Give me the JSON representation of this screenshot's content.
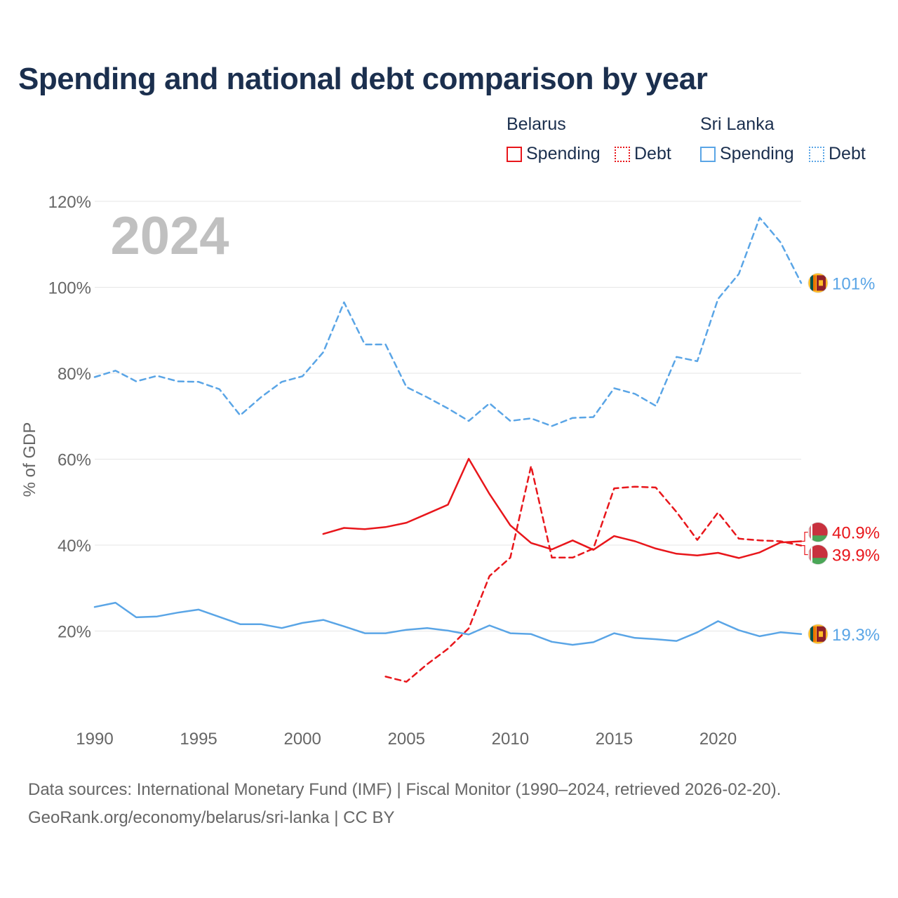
{
  "title": "Spending and national debt comparison by year",
  "legend": {
    "groups": [
      "Belarus",
      "Sri Lanka"
    ],
    "items": [
      "Spending",
      "Debt",
      "Spending",
      "Debt"
    ]
  },
  "year_label": "2024",
  "source": {
    "line1": "Data sources: International Monetary Fund (IMF) | Fiscal Monitor (1990–2024, retrieved 2026-02-20).",
    "line2": "GeoRank.org/economy/belarus/sri-lanka | CC BY"
  },
  "colors": {
    "belarus": "#e8161b",
    "sri_lanka": "#5aa5e6",
    "grid": "#e6e6e6",
    "axis_text": "#666666",
    "watermark": "#c0c0c0"
  },
  "chart_data": {
    "type": "line",
    "title": "Spending and national debt comparison by year",
    "xlabel": "",
    "ylabel": "% of GDP",
    "xlim": [
      1990,
      2024
    ],
    "ylim": [
      0,
      120
    ],
    "x_ticks": [
      1990,
      1995,
      2000,
      2005,
      2010,
      2015,
      2020
    ],
    "x_tick_labels": [
      "1990",
      "1995",
      "2000",
      "2005",
      "2010",
      "2015",
      "2020"
    ],
    "y_ticks": [
      20,
      40,
      60,
      80,
      100,
      120
    ],
    "y_tick_labels": [
      "20%",
      "40%",
      "60%",
      "80%",
      "100%",
      "120%"
    ],
    "grid": true,
    "series": [
      {
        "name": "Belarus Spending",
        "country": "Belarus",
        "metric": "Spending",
        "style": "solid",
        "color": "#e8161b",
        "x": [
          2001,
          2002,
          2003,
          2004,
          2005,
          2006,
          2007,
          2008,
          2009,
          2010,
          2011,
          2012,
          2013,
          2014,
          2015,
          2016,
          2017,
          2018,
          2019,
          2020,
          2021,
          2022,
          2023,
          2024
        ],
        "values": [
          42.6,
          44.0,
          43.7,
          44.2,
          45.2,
          47.3,
          49.4,
          60.1,
          51.9,
          44.6,
          40.5,
          39.0,
          41.1,
          38.9,
          42.1,
          40.9,
          39.2,
          38.0,
          37.6,
          38.2,
          37.0,
          38.3,
          40.6,
          40.9
        ],
        "end_label": "40.9%"
      },
      {
        "name": "Belarus Debt",
        "country": "Belarus",
        "metric": "Debt",
        "style": "dashed",
        "color": "#e8161b",
        "x": [
          2004,
          2005,
          2006,
          2007,
          2008,
          2009,
          2010,
          2011,
          2012,
          2013,
          2014,
          2015,
          2016,
          2017,
          2018,
          2019,
          2020,
          2021,
          2022,
          2023,
          2024
        ],
        "values": [
          9.4,
          8.2,
          12.3,
          15.9,
          20.6,
          32.8,
          37.1,
          58.4,
          37.1,
          37.1,
          39.2,
          53.2,
          53.6,
          53.4,
          47.7,
          41.2,
          47.6,
          41.5,
          41.1,
          40.9,
          39.9
        ],
        "end_label": "39.9%"
      },
      {
        "name": "Sri Lanka Spending",
        "country": "Sri Lanka",
        "metric": "Spending",
        "style": "solid",
        "color": "#5aa5e6",
        "x": [
          1990,
          1991,
          1992,
          1993,
          1994,
          1995,
          1996,
          1997,
          1998,
          1999,
          2000,
          2001,
          2002,
          2003,
          2004,
          2005,
          2006,
          2007,
          2008,
          2009,
          2010,
          2011,
          2012,
          2013,
          2014,
          2015,
          2016,
          2017,
          2018,
          2019,
          2020,
          2021,
          2022,
          2023,
          2024
        ],
        "values": [
          25.6,
          26.6,
          23.2,
          23.4,
          24.3,
          25.0,
          23.3,
          21.6,
          21.6,
          20.7,
          21.9,
          22.6,
          21.1,
          19.5,
          19.5,
          20.3,
          20.7,
          20.1,
          19.2,
          21.3,
          19.5,
          19.3,
          17.5,
          16.8,
          17.4,
          19.5,
          18.4,
          18.1,
          17.7,
          19.7,
          22.3,
          20.2,
          18.8,
          19.7,
          19.3
        ],
        "end_label": "19.3%"
      },
      {
        "name": "Sri Lanka Debt",
        "country": "Sri Lanka",
        "metric": "Debt",
        "style": "dashed",
        "color": "#5aa5e6",
        "x": [
          1990,
          1991,
          1992,
          1993,
          1994,
          1995,
          1996,
          1997,
          1998,
          1999,
          2000,
          2001,
          2002,
          2003,
          2004,
          2005,
          2006,
          2007,
          2008,
          2009,
          2010,
          2011,
          2012,
          2013,
          2014,
          2015,
          2016,
          2017,
          2018,
          2019,
          2020,
          2021,
          2022,
          2023,
          2024
        ],
        "values": [
          79.1,
          80.6,
          78.1,
          79.4,
          78.1,
          78.0,
          76.3,
          70.2,
          74.4,
          78.0,
          79.3,
          84.9,
          96.5,
          86.7,
          86.7,
          76.8,
          74.4,
          71.8,
          68.9,
          73.0,
          68.9,
          69.5,
          67.7,
          69.6,
          69.8,
          76.5,
          75.2,
          72.4,
          83.8,
          82.8,
          97.3,
          103.1,
          116.2,
          110.5,
          101.0
        ],
        "end_label": "101%"
      }
    ],
    "end_labels_order": [
      "Sri Lanka Debt",
      "Belarus Spending",
      "Belarus Debt",
      "Sri Lanka Spending"
    ]
  }
}
